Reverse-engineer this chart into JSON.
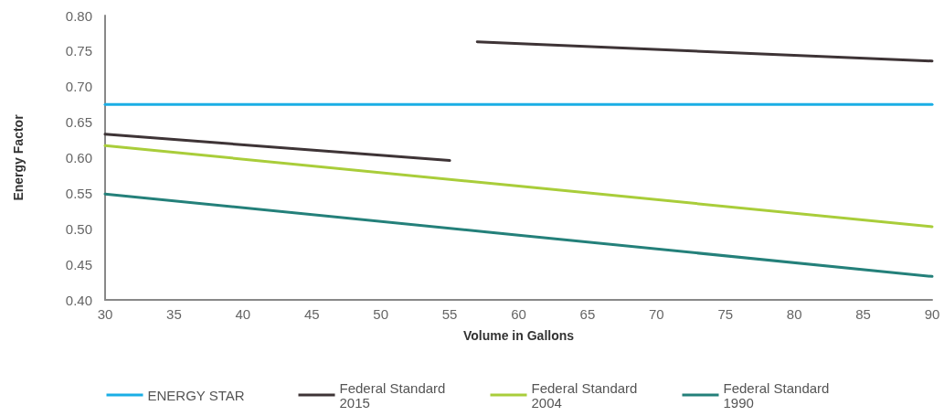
{
  "chart_data": {
    "type": "line",
    "xlabel": "Volume in Gallons",
    "ylabel": "Energy Factor",
    "xlim": [
      30,
      90
    ],
    "xticks": [
      30,
      35,
      40,
      45,
      50,
      55,
      60,
      65,
      70,
      75,
      80,
      85,
      90
    ],
    "ylim": [
      0.4,
      0.8
    ],
    "yticks": [
      {
        "value": 0.4,
        "label": "0.40"
      },
      {
        "value": 0.45,
        "label": "0.45"
      },
      {
        "value": 0.5,
        "label": "0.50"
      },
      {
        "value": 0.55,
        "label": "0.55"
      },
      {
        "value": 0.6,
        "label": "0.60"
      },
      {
        "value": 0.65,
        "label": "0.65"
      },
      {
        "value": 0.7,
        "label": "0.70"
      },
      {
        "value": 0.75,
        "label": "0.75"
      },
      {
        "value": 0.8,
        "label": "0.80"
      }
    ],
    "series": [
      {
        "name": "ENERGY STAR",
        "color": "#1aaee5",
        "x": [
          30,
          90
        ],
        "values": [
          0.675,
          0.675
        ]
      },
      {
        "name": "Federal Standard 2015",
        "color": "#3e3436",
        "x": [
          30,
          55,
          null,
          57,
          90
        ],
        "values": [
          0.633,
          0.596,
          null,
          0.763,
          0.736
        ]
      },
      {
        "name": "Federal Standard 2004",
        "color": "#a9cd3a",
        "x": [
          30,
          60,
          90
        ],
        "values": [
          0.617,
          0.56,
          0.503
        ]
      },
      {
        "name": "Federal Standard 1990",
        "color": "#24807a",
        "x": [
          30,
          60,
          90
        ],
        "values": [
          0.549,
          0.491,
          0.433
        ]
      }
    ],
    "grid": false,
    "legend": "bottom",
    "marker": "none",
    "line_style": "solid"
  }
}
